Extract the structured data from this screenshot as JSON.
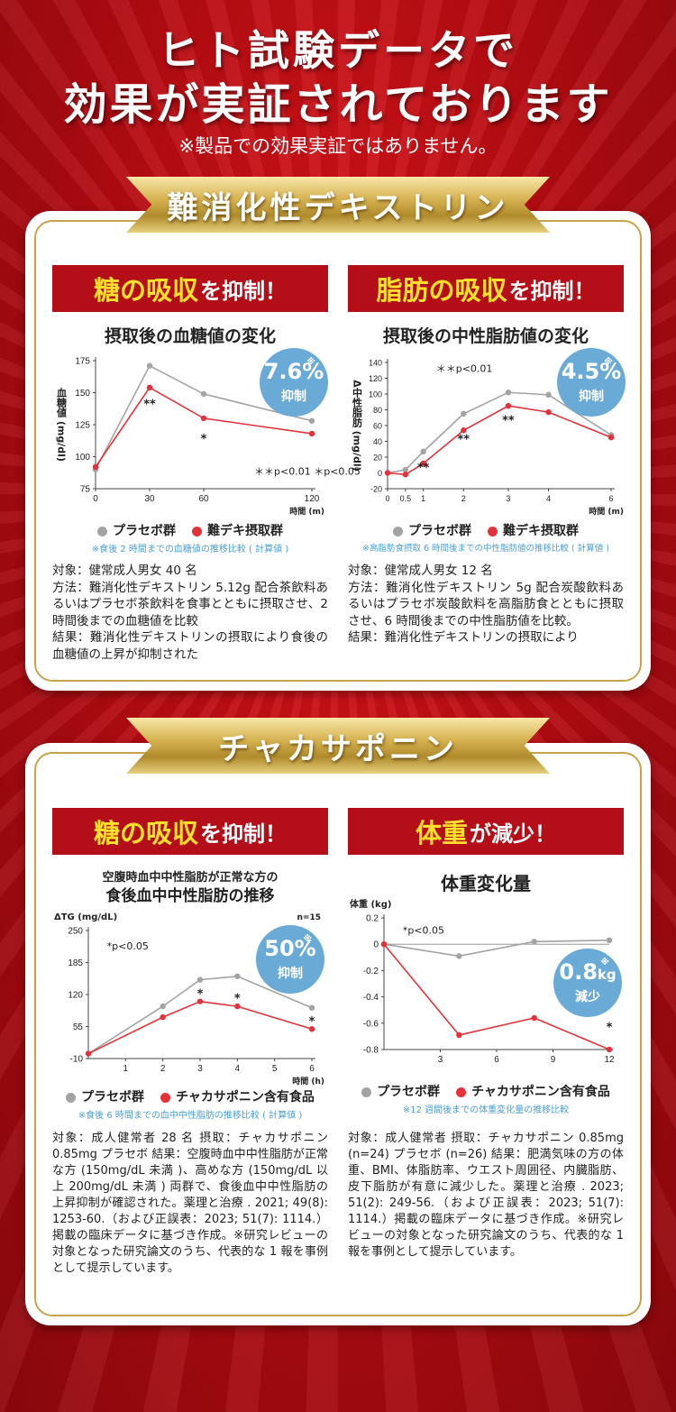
{
  "header": {
    "line1": "ヒト試験データで",
    "line2": "効果が実証されております",
    "note": "※製品での効果実証ではありません。"
  },
  "section1": {
    "banner": "難消化性デキストリン",
    "left": {
      "heading_yellow": "糖の吸収",
      "heading_white": "を抑制！",
      "chart_title": "摂取後の血糖値の変化",
      "badge": {
        "value": "7.6%",
        "label": "抑制",
        "mark": "※"
      },
      "legend": [
        "プラセボ群",
        "難デキ摂取群"
      ],
      "footnote": "※食後 2 時間までの血糖値の推移比較 ( 計算値 )",
      "description": "対象：健常成人男女 40 名\n方法：難消化性デキストリン 5.12g 配合茶飲料あるいはプラセボ茶飲料を食事とともに摂取させ、2 時間後までの血糖値を比較\n結果：難消化性デキストリンの摂取により食後の血糖値の上昇が抑制された"
    },
    "right": {
      "heading_yellow": "脂肪の吸収",
      "heading_white": "を抑制！",
      "chart_title": "摂取後の中性脂肪値の変化",
      "badge": {
        "value": "4.5%",
        "label": "抑制",
        "mark": "※"
      },
      "legend": [
        "プラセボ群",
        "難デキ摂取群"
      ],
      "footnote": "※高脂肪食摂取 6 時間後までの中性脂肪値の推移比較 ( 計算値 )",
      "description": "対象：健常成人男女 12 名\n方法：難消化性デキストリン 5g 配合炭酸飲料あるいはプラセボ炭酸飲料を高脂肪食とともに摂取させ、6 時間後までの中性脂肪値を比較。\n結果：難消化性デキストリンの摂取により"
    }
  },
  "section2": {
    "banner": "チャカサポニン",
    "left": {
      "heading_yellow": "糖の吸収",
      "heading_white": "を抑制！",
      "chart_title_sub": "空腹時血中中性脂肪が正常な方の",
      "chart_title": "食後血中中性脂肪の推移",
      "badge": {
        "value": "50%",
        "label": "抑制",
        "mark": "※"
      },
      "legend": [
        "プラセボ群",
        "チャカサポニン含有食品"
      ],
      "footnote": "※食後 6 時間までの血中中性脂肪の推移比較 ( 計算値 )",
      "description": "対象：成人健常者 28 名 摂取：チャカサポニン 0.85mg プラセボ 結果：空腹時血中中性脂肪が正常な方 (150mg/dL 未満 )、高めな方 (150mg/dL 以上 200mg/dL 未満 ) 両群で、食後血中中性脂肪の上昇抑制が確認された。薬理と治療 . 2021; 49(8): 1253-60.（および正誤表：2023; 51(7): 1114.）掲載の臨床データに基づき作成。※研究レビューの対象となった研究論文のうち、代表的な 1 報を事例として提示しています。"
    },
    "right": {
      "heading_yellow": "体重",
      "heading_white": "が減少！",
      "chart_title": "体重変化量",
      "badge": {
        "value": "0.8",
        "unit": "kg",
        "label": "減少",
        "mark": "※"
      },
      "legend": [
        "プラセボ群",
        "チャカサポニン含有食品"
      ],
      "footnote": "※12 週間後までの体重変化量の推移比較",
      "description": "対象：成人健常者 摂取：チャカサポニン 0.85mg (n=24) プラセボ (n=26) 結果：肥満気味の方の体重、BMI、体脂肪率、ウエスト周囲径、内臓脂肪、皮下脂肪が有意に減少した。薬理と治療 . 2023; 51(2): 249-56.（および正誤表：2023; 51(7): 1114.）掲載の臨床データに基づき作成。※研究レビューの対象となった研究論文のうち、代表的な 1 報を事例として提示しています。"
    }
  },
  "colors": {
    "placebo": "#a3a3a3",
    "treatment": "#e5323a",
    "badge": "#6aaad6",
    "red": "#b40f18",
    "gold": "#c9a24a"
  },
  "chart_data": [
    {
      "id": "glucose",
      "type": "line",
      "title": "摂取後の血糖値の変化",
      "ylabel": "血糖値 (mg/dl)",
      "xlabel": "時間 (m)",
      "xlim": [
        0,
        120
      ],
      "ylim": [
        75,
        175
      ],
      "xticks": [
        "0",
        "30",
        "60",
        "120"
      ],
      "yticks": [
        "75",
        "100",
        "125",
        "150",
        "175"
      ],
      "x": [
        0,
        30,
        60,
        120
      ],
      "series": [
        {
          "name": "プラセボ群",
          "values": [
            90,
            171,
            149,
            128
          ]
        },
        {
          "name": "難デキ摂取群",
          "values": [
            92,
            154,
            130,
            118
          ]
        }
      ],
      "annotations": [
        {
          "text": "**",
          "x": 30,
          "y": 138
        },
        {
          "text": "*",
          "x": 60,
          "y": 111
        },
        {
          "text": "＊＊p<0.01 ＊p<0.05",
          "x": 88,
          "y": 86
        }
      ]
    },
    {
      "id": "triglyceride",
      "type": "line",
      "title": "摂取後の中性脂肪値の変化",
      "ylabel": "Δ中性脂肪 (mg/dl)",
      "xlabel": "時間 (m)",
      "xlim": [
        0,
        6
      ],
      "ylim": [
        -20,
        140
      ],
      "xticks": [
        "0",
        "0.5",
        "1",
        "2",
        "3",
        "4",
        "6"
      ],
      "yticks": [
        "-20",
        "0",
        "20",
        "40",
        "60",
        "80",
        "100",
        "120",
        "140"
      ],
      "x": [
        0,
        0.5,
        1,
        2,
        3,
        4,
        6
      ],
      "series": [
        {
          "name": "プラセボ群",
          "values": [
            0,
            4,
            27,
            75,
            102,
            99,
            48
          ]
        },
        {
          "name": "難デキ摂取群",
          "values": [
            0,
            -2,
            12,
            54,
            85,
            77,
            45
          ]
        }
      ],
      "annotations": [
        {
          "text": "＊＊p<0.01",
          "x": 1.3,
          "y": 128
        },
        {
          "text": "**",
          "x": 1,
          "y": 2
        },
        {
          "text": "**",
          "x": 2,
          "y": 38
        },
        {
          "text": "**",
          "x": 3,
          "y": 62
        }
      ]
    },
    {
      "id": "tg_postprandial",
      "type": "line",
      "title": "食後血中中性脂肪の推移",
      "ylabel": "ΔTG (mg/dL)",
      "xlabel": "時間 (h)",
      "xlim": [
        0,
        6
      ],
      "ylim": [
        -10,
        250
      ],
      "xticks": [
        "1",
        "2",
        "3",
        "4",
        "5",
        "6"
      ],
      "yticks": [
        "-10",
        "55",
        "120",
        "185",
        "250"
      ],
      "n_label": "n=15",
      "x": [
        0,
        2,
        3,
        4,
        6
      ],
      "series": [
        {
          "name": "プラセボ群",
          "values": [
            0,
            96,
            150,
            157,
            93
          ]
        },
        {
          "name": "チャカサポニン含有食品",
          "values": [
            0,
            74,
            106,
            96,
            50
          ]
        }
      ],
      "annotations": [
        {
          "text": "*p<0.05",
          "x": 0.5,
          "y": 212
        },
        {
          "text": "*",
          "x": 3,
          "y": 114
        },
        {
          "text": "*",
          "x": 4,
          "y": 104
        },
        {
          "text": "*",
          "x": 6,
          "y": 58
        }
      ]
    },
    {
      "id": "weight",
      "type": "line",
      "title": "体重変化量",
      "ylabel": "体重 (kg)",
      "xlabel": "",
      "xlim": [
        0,
        12
      ],
      "ylim": [
        -0.8,
        0.2
      ],
      "xticks": [
        "3",
        "6",
        "9",
        "12"
      ],
      "yticks": [
        "0.2",
        "0",
        "-0.2",
        "-0.4",
        "-0.6",
        "-0.8"
      ],
      "x": [
        0,
        4,
        8,
        12
      ],
      "series": [
        {
          "name": "プラセボ群",
          "values": [
            0,
            -0.09,
            0.02,
            0.03
          ]
        },
        {
          "name": "チャカサポニン含有食品",
          "values": [
            0,
            -0.69,
            -0.56,
            -0.8
          ]
        }
      ],
      "annotations": [
        {
          "text": "*p<0.05",
          "x": 1,
          "y": 0.08
        },
        {
          "text": "*",
          "x": 12,
          "y": -0.66
        }
      ]
    }
  ]
}
